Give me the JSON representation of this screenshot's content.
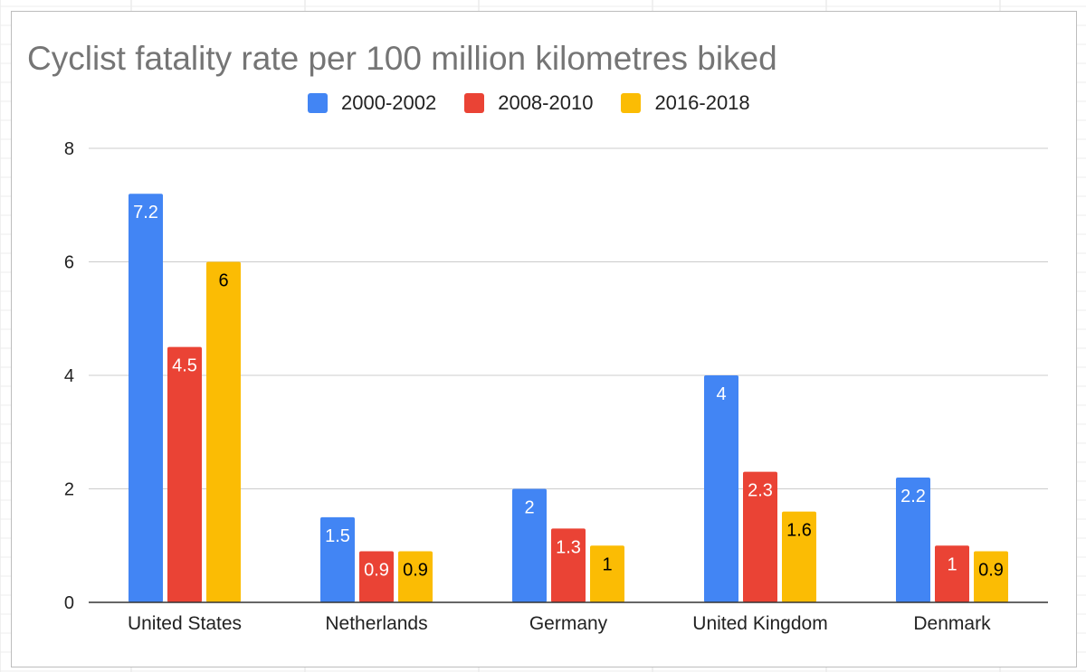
{
  "chart_data": {
    "type": "bar",
    "title": "Cyclist fatality rate per 100 million kilometres biked",
    "xlabel": "",
    "ylabel": "",
    "categories": [
      "United States",
      "Netherlands",
      "Germany",
      "United Kingdom",
      "Denmark"
    ],
    "series": [
      {
        "name": "2000-2002",
        "color": "#4285f4",
        "label_color": "#ffffff",
        "values": [
          7.2,
          1.5,
          2,
          4,
          2.2
        ]
      },
      {
        "name": "2008-2010",
        "color": "#ea4335",
        "label_color": "#ffffff",
        "values": [
          4.5,
          0.9,
          1.3,
          2.3,
          1
        ]
      },
      {
        "name": "2016-2018",
        "color": "#fbbc04",
        "label_color": "#000000",
        "values": [
          6,
          0.9,
          1,
          1.6,
          0.9
        ]
      }
    ],
    "ylim": [
      0,
      8
    ],
    "yticks": [
      0,
      2,
      4,
      6,
      8
    ],
    "grid": true,
    "legend_position": "top"
  }
}
